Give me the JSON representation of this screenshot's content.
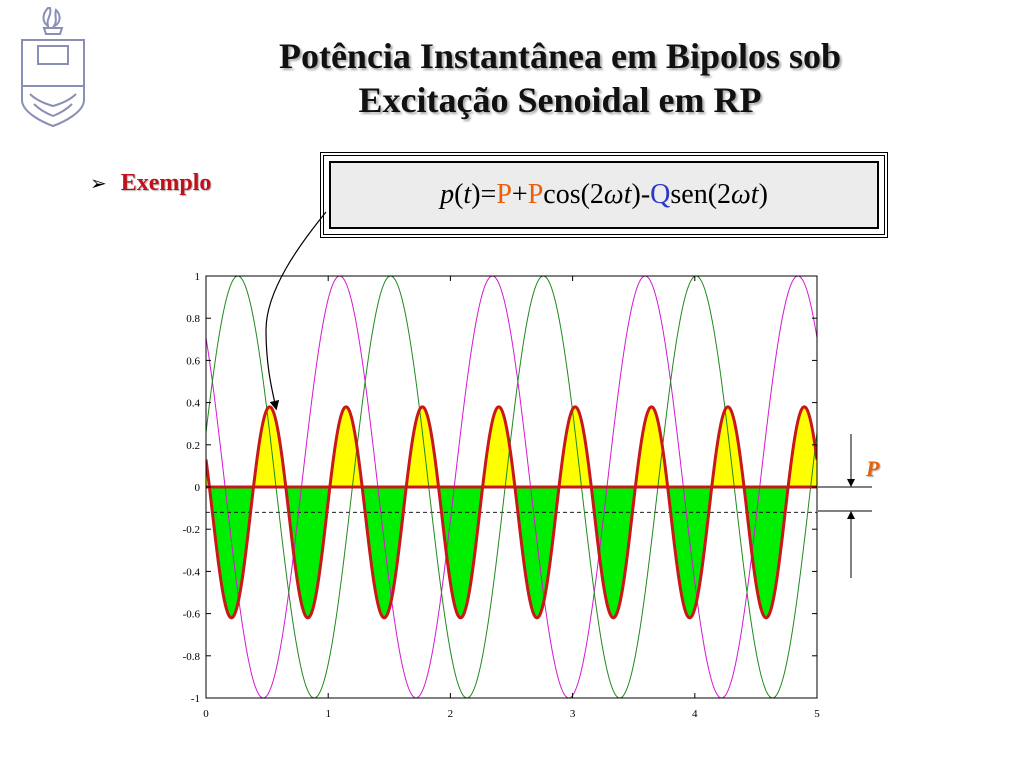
{
  "title": {
    "line1": "Potência Instantânea em Bipolos sob",
    "line2": "Excitação Senoidal em RP"
  },
  "bullet": {
    "icon": "arrow-bullet-icon",
    "label": "Exemplo"
  },
  "formula": {
    "p": "p",
    "open": "(",
    "t": "t",
    "close": ")",
    "eq": " =",
    "P1": "P",
    "plus": "+",
    "P2": "P",
    "cos": "cos(2",
    "omega1": "ωt",
    "cclose": ")",
    "minus": "-",
    "Q": "Q",
    "sen": "sen(2",
    "omega2": "ωt",
    "sclose": ")"
  },
  "annotation": {
    "P_label": "P"
  },
  "colors": {
    "voltage": "#d419d4",
    "current": "#1f8a1f",
    "power_line": "#c81818",
    "positive_fill": "#ffff00",
    "negative_fill": "#00ee00",
    "p_label": "#e8600a",
    "q_label": "#2a37c9"
  },
  "chart_data": {
    "type": "line",
    "xlim": [
      0,
      5
    ],
    "ylim": [
      -1,
      1
    ],
    "x_ticks": [
      0,
      1,
      2,
      3,
      4,
      5
    ],
    "x_tick_labels": [
      "0",
      "1",
      "2",
      "3",
      "4",
      "5"
    ],
    "y_ticks": [
      1,
      0.8,
      0.6,
      0.4,
      0.2,
      0,
      -0.2,
      -0.4,
      -0.6,
      -0.8,
      -1
    ],
    "y_tick_labels": [
      "1",
      "0.8",
      "0.6",
      "0.4",
      "0.2",
      "0",
      "-0.2",
      "-0.4",
      "-0.6",
      "-0.8",
      "-1"
    ],
    "grid": false,
    "series": [
      {
        "key": "voltage",
        "amplitude": 1.0,
        "frequency": 0.8,
        "phase_deg": 45,
        "style": "thin"
      },
      {
        "key": "current",
        "amplitude": 1.0,
        "frequency": 0.8,
        "phase_deg": -75,
        "style": "thin"
      },
      {
        "key": "power",
        "amplitude": 0.5,
        "offset": -0.12,
        "frequency": 1.6,
        "phase_deg": 60,
        "style": "thick-filled"
      }
    ],
    "mean_power_P": -0.12,
    "reference_lines": [
      {
        "y": 0,
        "style": "solid"
      },
      {
        "y": -0.12,
        "style": "dashed"
      }
    ]
  }
}
